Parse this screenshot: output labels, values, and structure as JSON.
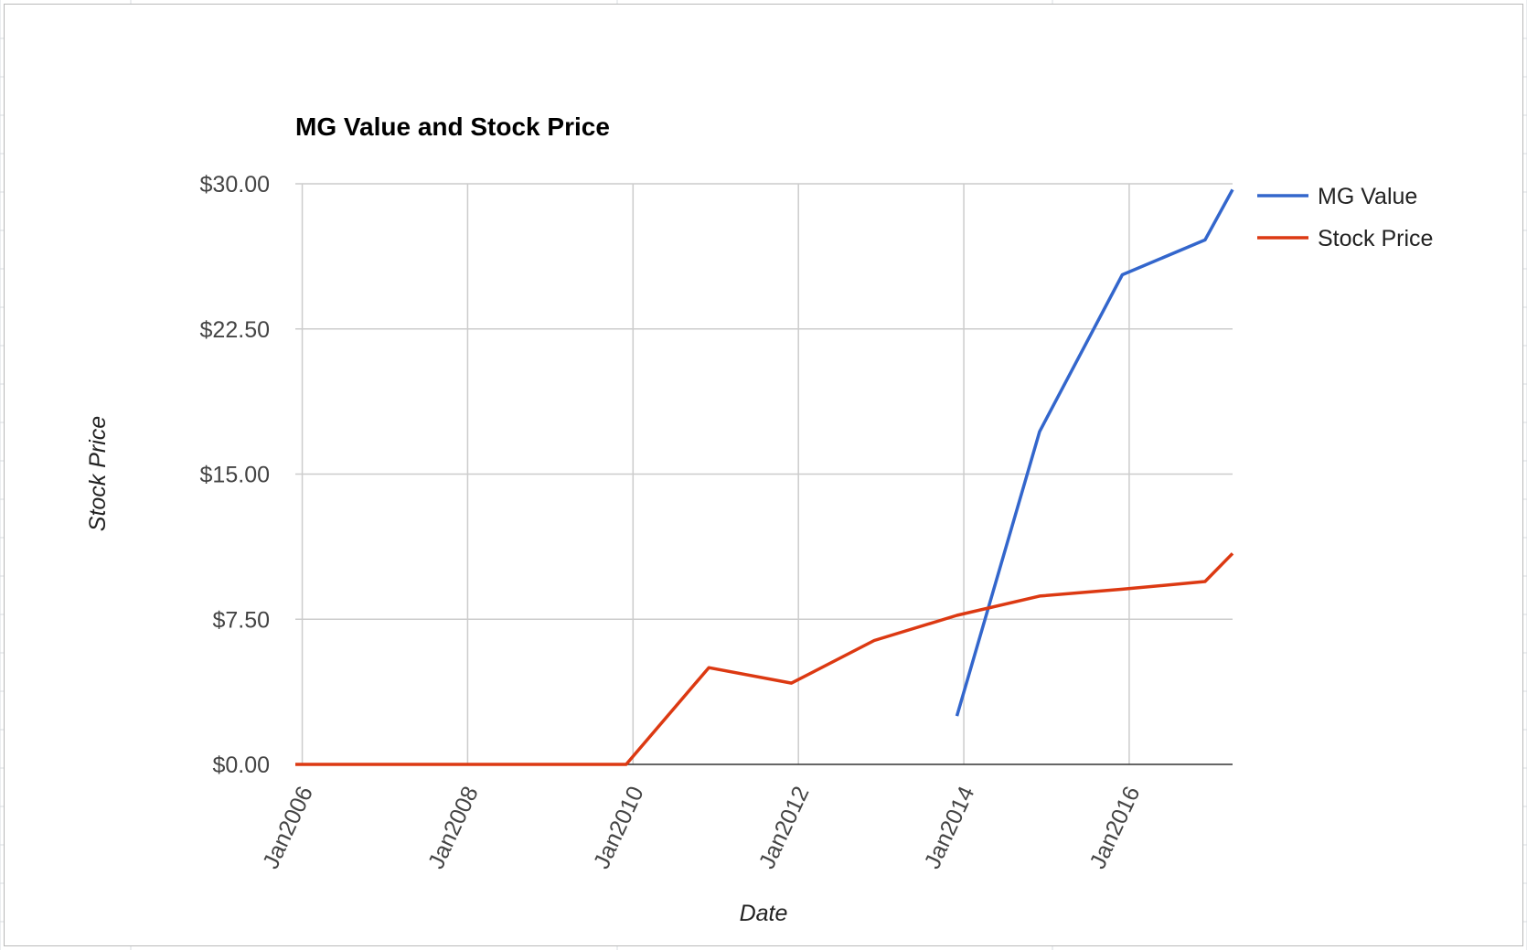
{
  "chart_data": {
    "type": "line",
    "title": "MG Value and Stock Price",
    "xlabel": "Date",
    "ylabel": "Stock Price",
    "x_ticks": [
      "Jan2006",
      "Jan2008",
      "Jan2010",
      "Jan2012",
      "Jan2014",
      "Jan2016"
    ],
    "y_ticks": [
      "$0.00",
      "$7.50",
      "$15.00",
      "$22.50",
      "$30.00"
    ],
    "ylim": [
      0,
      30
    ],
    "xlim": [
      "2005-12-01",
      "2017-04-01"
    ],
    "grid": true,
    "legend_position": "right",
    "series": [
      {
        "name": "MG Value",
        "color": "#3366cc",
        "points": [
          {
            "x": "2013-12-01",
            "y": 2.5
          },
          {
            "x": "2014-12-01",
            "y": 17.2
          },
          {
            "x": "2015-12-01",
            "y": 25.3
          },
          {
            "x": "2016-12-01",
            "y": 27.1
          },
          {
            "x": "2017-04-01",
            "y": 29.7
          }
        ]
      },
      {
        "name": "Stock Price",
        "color": "#dc3912",
        "points": [
          {
            "x": "2005-12-01",
            "y": 0
          },
          {
            "x": "2009-12-01",
            "y": 0
          },
          {
            "x": "2010-12-01",
            "y": 5.0
          },
          {
            "x": "2011-12-01",
            "y": 4.2
          },
          {
            "x": "2012-12-01",
            "y": 6.4
          },
          {
            "x": "2013-12-01",
            "y": 7.7
          },
          {
            "x": "2014-12-01",
            "y": 8.7
          },
          {
            "x": "2015-12-01",
            "y": 9.05
          },
          {
            "x": "2016-12-01",
            "y": 9.45
          },
          {
            "x": "2017-04-01",
            "y": 10.9
          }
        ]
      }
    ]
  }
}
